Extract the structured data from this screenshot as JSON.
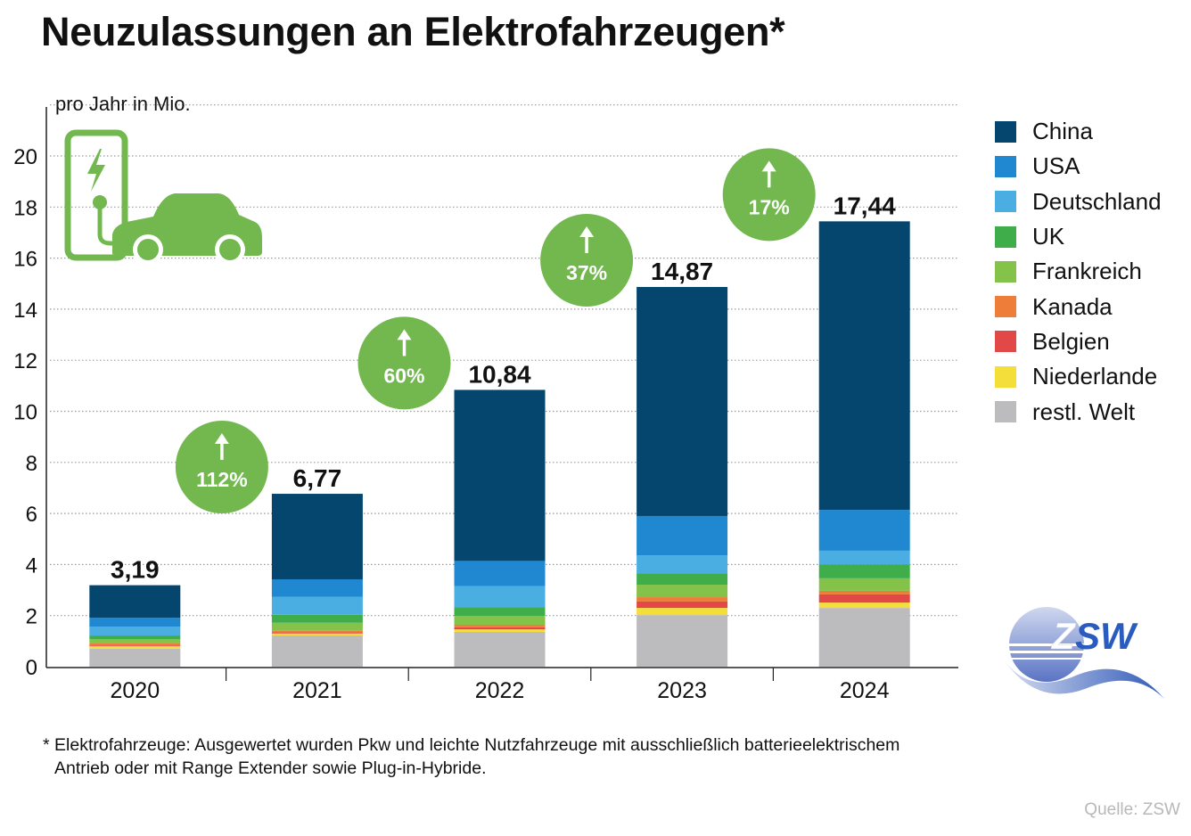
{
  "title": "Neuzulassungen an Elektrofahrzeugen*",
  "unit_label": "pro Jahr in Mio.",
  "footnote_line1": "* Elektrofahrzeuge: Ausgewertet wurden Pkw und leichte Nutzfahrzeuge mit ausschließlich batterieelektrischem",
  "footnote_line2": "Antrieb oder mit Range Extender sowie Plug-in-Hybride.",
  "source": "Quelle: ZSW",
  "logo_text": "ZSW",
  "icons": {
    "illustration": "ev-charging-car-icon",
    "logo": "zsw-logo"
  },
  "chart_data": {
    "type": "bar",
    "stacked": true,
    "title": "Neuzulassungen an Elektrofahrzeugen*",
    "ylabel": "pro Jahr in Mio.",
    "xlabel": "",
    "ylim": [
      0,
      22
    ],
    "yticks": [
      0,
      2,
      4,
      6,
      8,
      10,
      12,
      14,
      16,
      18,
      20
    ],
    "grid": "horizontal-dotted",
    "legend_position": "right",
    "categories": [
      "2020",
      "2021",
      "2022",
      "2023",
      "2024"
    ],
    "totals": [
      3.19,
      6.77,
      10.84,
      14.87,
      17.44
    ],
    "total_labels": [
      "3,19",
      "6,77",
      "10,84",
      "14,87",
      "17,44"
    ],
    "growth_labels": [
      null,
      "112%",
      "60%",
      "37%",
      "17%"
    ],
    "growth_color": "#72b84f",
    "series": [
      {
        "name": "restl. Welt",
        "color": "#bcbcbe",
        "values": [
          0.7,
          1.22,
          1.36,
          2.02,
          2.3
        ]
      },
      {
        "name": "Niederlande",
        "color": "#f4de3a",
        "values": [
          0.1,
          0.08,
          0.1,
          0.28,
          0.21
        ]
      },
      {
        "name": "Belgien",
        "color": "#e24848",
        "values": [
          0.03,
          0.05,
          0.08,
          0.25,
          0.32
        ]
      },
      {
        "name": "Kanada",
        "color": "#ee7d3a",
        "values": [
          0.08,
          0.05,
          0.1,
          0.17,
          0.14
        ]
      },
      {
        "name": "Frankreich",
        "color": "#85c24a",
        "values": [
          0.17,
          0.32,
          0.34,
          0.49,
          0.49
        ]
      },
      {
        "name": "UK",
        "color": "#3fae4a",
        "values": [
          0.14,
          0.31,
          0.34,
          0.45,
          0.55
        ]
      },
      {
        "name": "Deutschland",
        "color": "#4aaee3",
        "values": [
          0.35,
          0.7,
          0.84,
          0.7,
          0.53
        ]
      },
      {
        "name": "USA",
        "color": "#1f88d0",
        "values": [
          0.35,
          0.69,
          0.98,
          1.54,
          1.6
        ]
      },
      {
        "name": "China",
        "color": "#05466f",
        "values": [
          1.27,
          3.35,
          6.7,
          8.97,
          11.3
        ]
      }
    ]
  },
  "legend": [
    {
      "label": "China",
      "color": "#05466f"
    },
    {
      "label": "USA",
      "color": "#1f88d0"
    },
    {
      "label": "Deutschland",
      "color": "#4aaee3"
    },
    {
      "label": "UK",
      "color": "#3fae4a"
    },
    {
      "label": "Frankreich",
      "color": "#85c24a"
    },
    {
      "label": "Kanada",
      "color": "#ee7d3a"
    },
    {
      "label": "Belgien",
      "color": "#e24848"
    },
    {
      "label": "Niederlande",
      "color": "#f4de3a"
    },
    {
      "label": "restl. Welt",
      "color": "#bcbcbe"
    }
  ]
}
